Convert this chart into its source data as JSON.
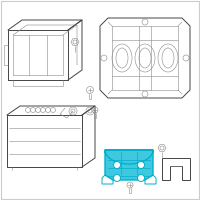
{
  "background_color": "#ffffff",
  "border_color": "#cccccc",
  "line_color": "#444444",
  "gray_color": "#888888",
  "highlight_color": "#00b0cc",
  "highlight_fill": "#40c8e0",
  "highlight_fill2": "#80d8ee",
  "figsize": [
    2.0,
    2.0
  ],
  "dpi": 100,
  "lw_main": 0.7,
  "lw_thin": 0.4,
  "lw_thick": 1.0
}
